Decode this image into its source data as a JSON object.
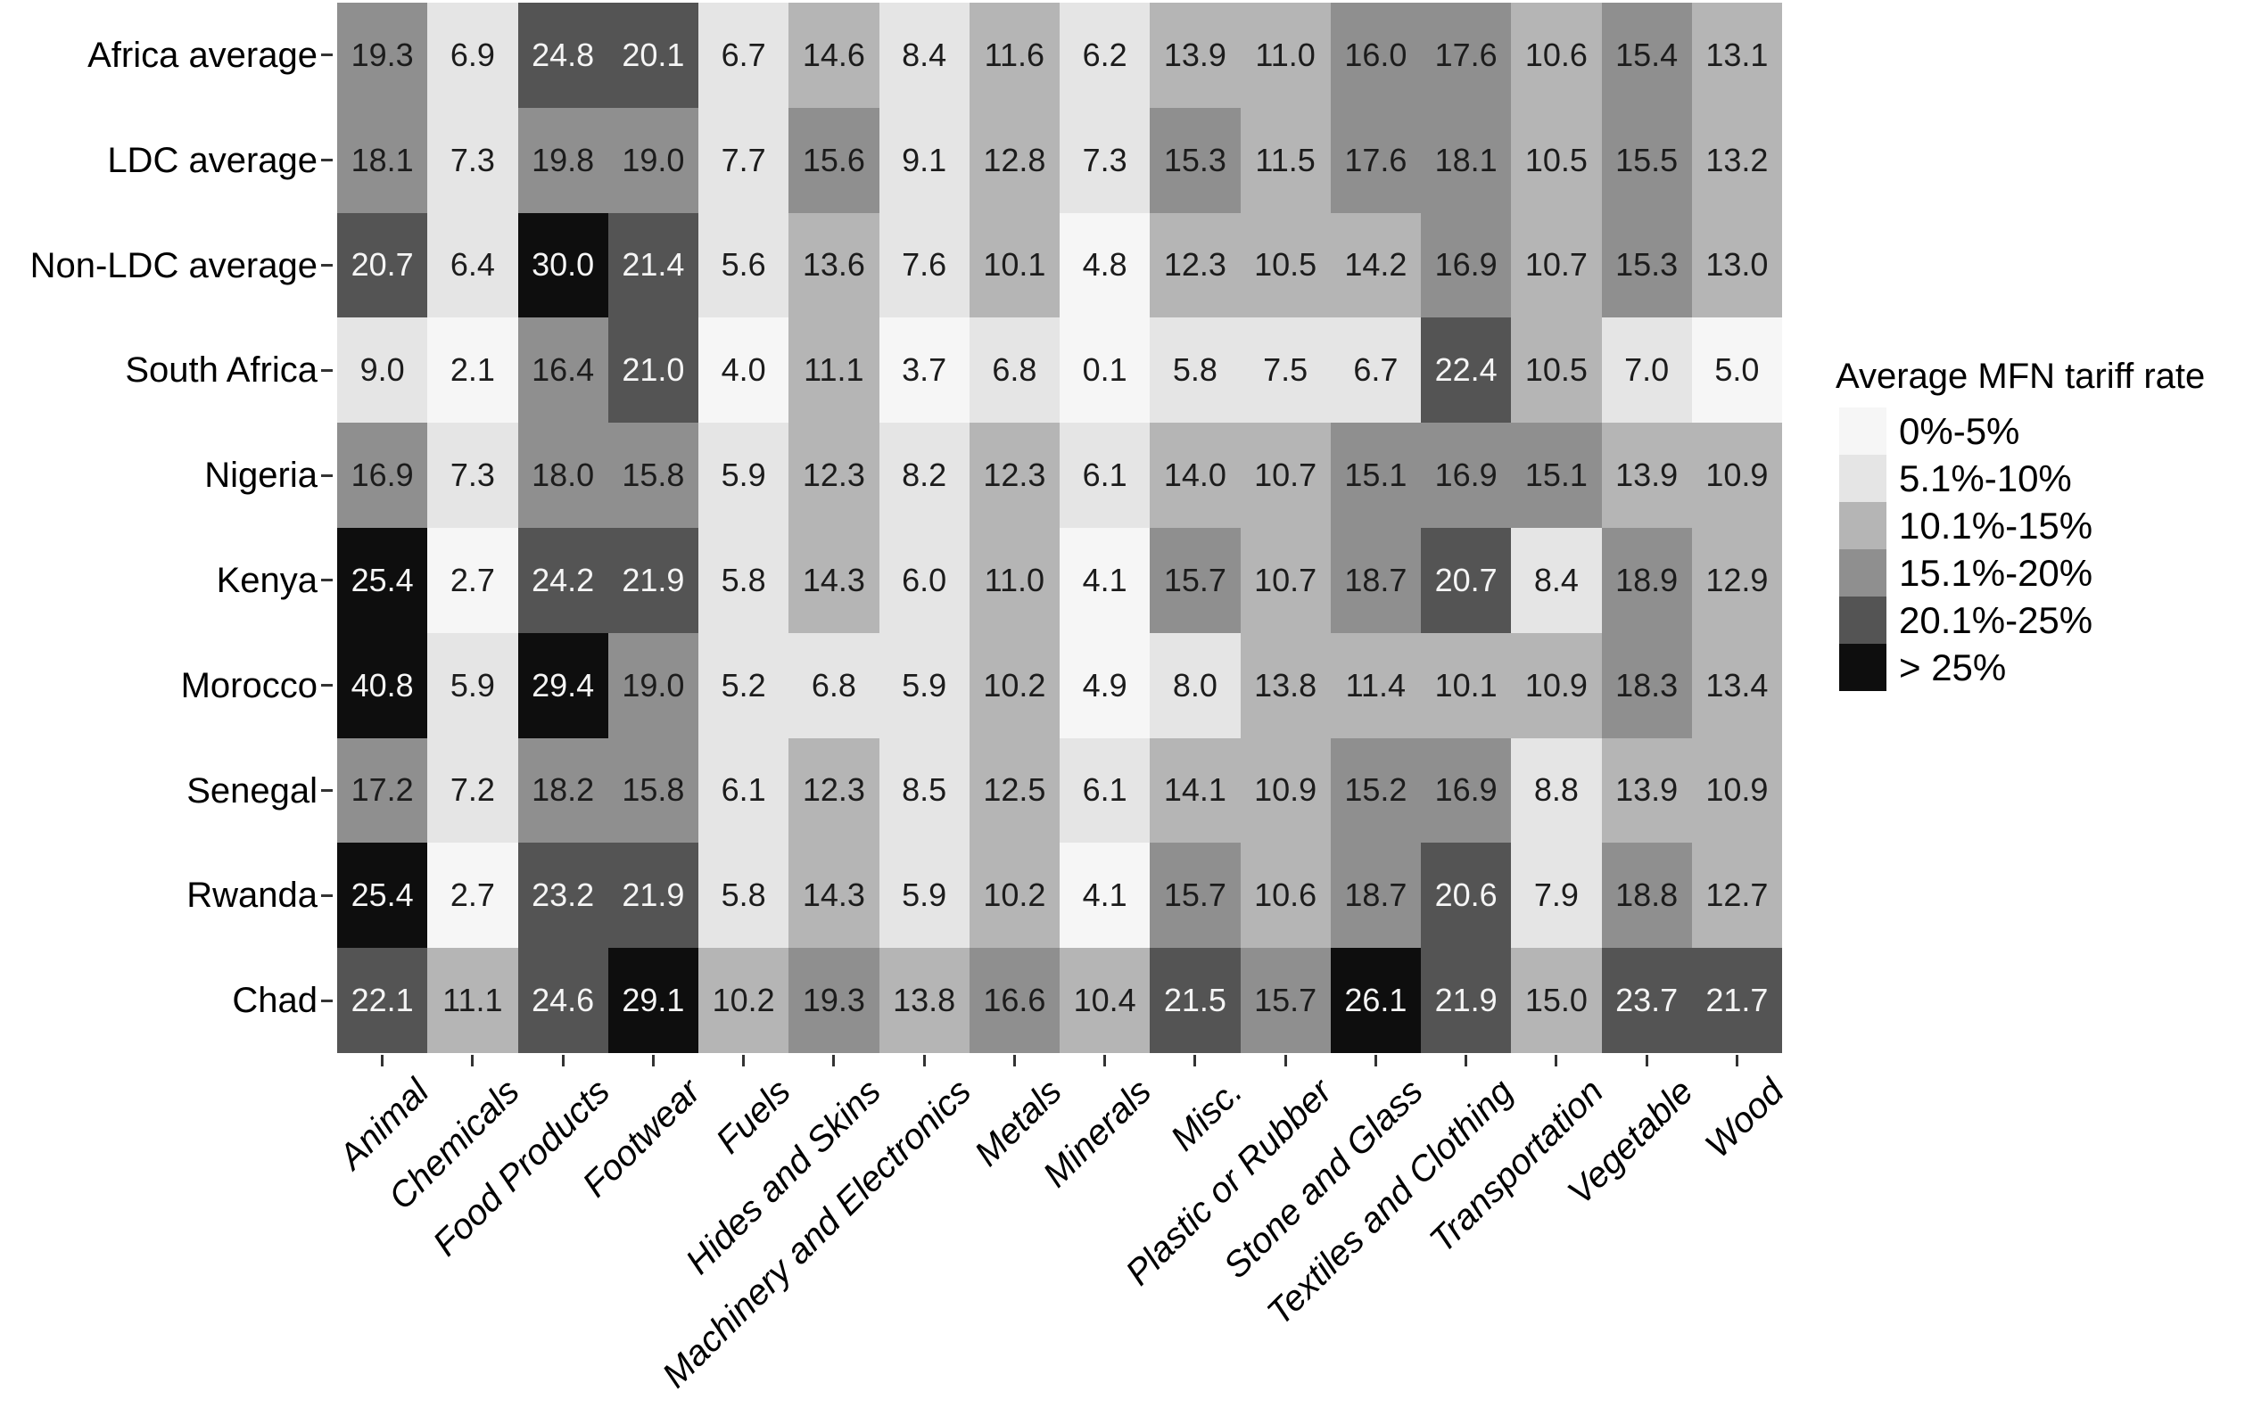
{
  "chart_data": {
    "type": "heatmap",
    "title": "",
    "legend_title": "Average MFN tariff rate",
    "legend_position": "right",
    "x_categories": [
      "Animal",
      "Chemicals",
      "Food Products",
      "Footwear",
      "Fuels",
      "Hides and Skins",
      "Machinery and Electronics",
      "Metals",
      "Minerals",
      "Misc.",
      "Plastic or Rubber",
      "Stone and Glass",
      "Textiles and Clothing",
      "Transportation",
      "Vegetable",
      "Wood"
    ],
    "y_categories": [
      "Africa average",
      "LDC average",
      "Non-LDC average",
      "South Africa",
      "Nigeria",
      "Kenya",
      "Morocco",
      "Senegal",
      "Rwanda",
      "Chad"
    ],
    "values": [
      [
        19.3,
        6.9,
        24.8,
        20.1,
        6.7,
        14.6,
        8.4,
        11.6,
        6.2,
        13.9,
        11.0,
        16.0,
        17.6,
        10.6,
        15.4,
        13.1
      ],
      [
        18.1,
        7.3,
        19.8,
        19.0,
        7.7,
        15.6,
        9.1,
        12.8,
        7.3,
        15.3,
        11.5,
        17.6,
        18.1,
        10.5,
        15.5,
        13.2
      ],
      [
        20.7,
        6.4,
        30.0,
        21.4,
        5.6,
        13.6,
        7.6,
        10.1,
        4.8,
        12.3,
        10.5,
        14.2,
        16.9,
        10.7,
        15.3,
        13.0
      ],
      [
        9.0,
        2.1,
        16.4,
        21.0,
        4.0,
        11.1,
        3.7,
        6.8,
        0.1,
        5.8,
        7.5,
        6.7,
        22.4,
        10.5,
        7.0,
        5.0
      ],
      [
        16.9,
        7.3,
        18.0,
        15.8,
        5.9,
        12.3,
        8.2,
        12.3,
        6.1,
        14.0,
        10.7,
        15.1,
        16.9,
        15.1,
        13.9,
        10.9
      ],
      [
        25.4,
        2.7,
        24.2,
        21.9,
        5.8,
        14.3,
        6.0,
        11.0,
        4.1,
        15.7,
        10.7,
        18.7,
        20.7,
        8.4,
        18.9,
        12.9
      ],
      [
        40.8,
        5.9,
        29.4,
        19.0,
        5.2,
        6.8,
        5.9,
        10.2,
        4.9,
        8.0,
        13.8,
        11.4,
        10.1,
        10.9,
        18.3,
        13.4
      ],
      [
        17.2,
        7.2,
        18.2,
        15.8,
        6.1,
        12.3,
        8.5,
        12.5,
        6.1,
        14.1,
        10.9,
        15.2,
        16.9,
        8.8,
        13.9,
        10.9
      ],
      [
        25.4,
        2.7,
        23.2,
        21.9,
        5.8,
        14.3,
        5.9,
        10.2,
        4.1,
        15.7,
        10.6,
        18.7,
        20.6,
        7.9,
        18.8,
        12.7
      ],
      [
        22.1,
        11.1,
        24.6,
        29.1,
        10.2,
        19.3,
        13.8,
        16.6,
        10.4,
        21.5,
        15.7,
        26.1,
        21.9,
        15.0,
        23.7,
        21.7
      ]
    ],
    "bins": [
      {
        "label": "0%-5%",
        "max": 5,
        "color": "#f6f6f6"
      },
      {
        "label": "5.1%-10%",
        "max": 10,
        "color": "#e5e5e5"
      },
      {
        "label": "10.1%-15%",
        "max": 15,
        "color": "#b5b5b5"
      },
      {
        "label": "15.1%-20%",
        "max": 20,
        "color": "#8f8f8f"
      },
      {
        "label": "20.1%-25%",
        "max": 25,
        "color": "#545454"
      },
      {
        "label": "> 25%",
        "max": null,
        "color": "#0e0e0e"
      }
    ],
    "colors": {
      "cell_text_dark": "#1c1c1c",
      "cell_text_light": "#f5f5f5",
      "axis_text": "#000000",
      "tick": "#333333",
      "background": "#ffffff"
    },
    "value_format": "one_decimal",
    "grid_lines": false
  }
}
